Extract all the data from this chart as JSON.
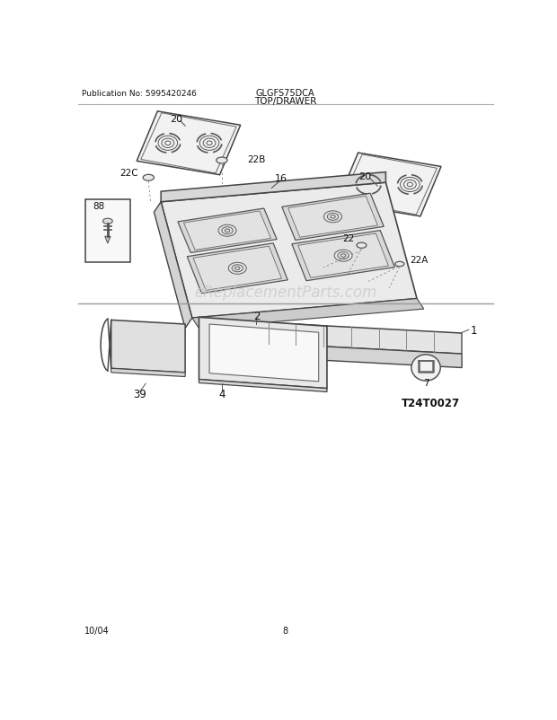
{
  "title": "TOP/DRAWER",
  "pub_no": "Publication No: 5995420246",
  "model": "GLGFS75DCA",
  "date": "10/04",
  "page": "8",
  "diagram_code": "T24T0027",
  "watermark": "eReplacementParts.com",
  "bg_color": "#ffffff",
  "line_color": "#555555",
  "text_color": "#222222"
}
